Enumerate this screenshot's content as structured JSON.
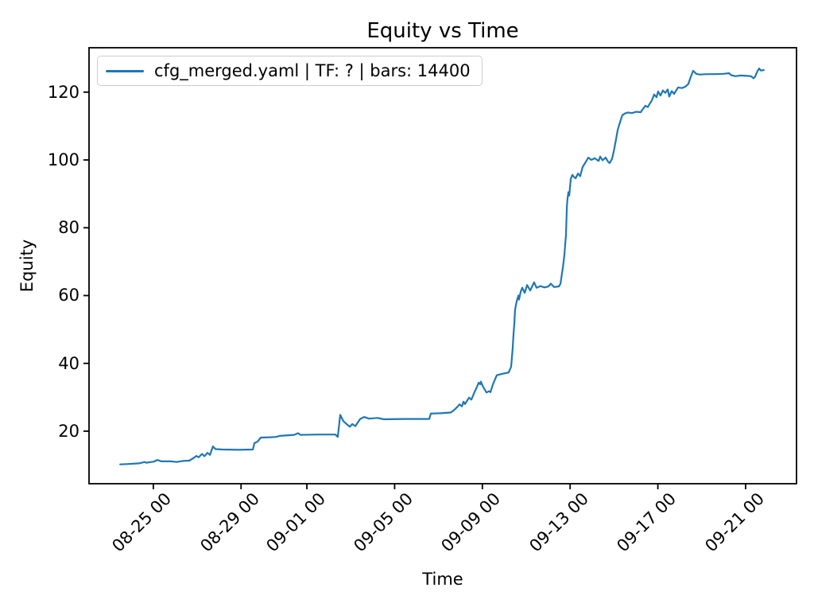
{
  "figure": {
    "title": "Equity vs Time",
    "xlabel": "Time",
    "ylabel": "Equity",
    "background_color": "#ffffff",
    "text_color": "#000000"
  },
  "legend": {
    "series_label": "cfg_merged.yaml | TF: ? | bars: 14400",
    "line_color": "#1f77b4",
    "position": "upper left"
  },
  "chart_data": {
    "type": "line",
    "title": "Equity vs Time",
    "xlabel": "Time",
    "ylabel": "Equity",
    "grid": false,
    "legend_position": "upper left",
    "x_unit": "days since 08-22 00:00 (dates shown as MM-DD HH)",
    "xlim": [
      0.07,
      32.32
    ],
    "ylim": [
      4.5,
      133.1
    ],
    "x_ticks": [
      {
        "t": 3,
        "label": "08-25 00"
      },
      {
        "t": 7,
        "label": "08-29 00"
      },
      {
        "t": 10,
        "label": "09-01 00"
      },
      {
        "t": 14,
        "label": "09-05 00"
      },
      {
        "t": 18,
        "label": "09-09 00"
      },
      {
        "t": 22,
        "label": "09-13 00"
      },
      {
        "t": 26,
        "label": "09-17 00"
      },
      {
        "t": 30,
        "label": "09-21 00"
      }
    ],
    "y_ticks": [
      20,
      40,
      60,
      80,
      100,
      120
    ],
    "series": [
      {
        "name": "cfg_merged.yaml | TF: ? | bars: 14400",
        "color": "#1f77b4",
        "line_width": 2.2,
        "points": [
          [
            1.49,
            10.2
          ],
          [
            1.81,
            10.3
          ],
          [
            2.36,
            10.5
          ],
          [
            2.6,
            10.9
          ],
          [
            2.68,
            10.7
          ],
          [
            3.01,
            11.0
          ],
          [
            3.19,
            11.5
          ],
          [
            3.37,
            11.1
          ],
          [
            3.8,
            11.1
          ],
          [
            4.06,
            10.9
          ],
          [
            4.35,
            11.2
          ],
          [
            4.64,
            11.3
          ],
          [
            4.82,
            12.0
          ],
          [
            4.96,
            12.7
          ],
          [
            5.07,
            12.3
          ],
          [
            5.22,
            13.3
          ],
          [
            5.33,
            12.6
          ],
          [
            5.47,
            13.6
          ],
          [
            5.58,
            13.0
          ],
          [
            5.72,
            15.5
          ],
          [
            5.83,
            14.7
          ],
          [
            6.16,
            14.6
          ],
          [
            6.88,
            14.5
          ],
          [
            7.54,
            14.6
          ],
          [
            7.61,
            16.5
          ],
          [
            7.75,
            16.9
          ],
          [
            7.9,
            18.1
          ],
          [
            8.33,
            18.2
          ],
          [
            8.59,
            18.3
          ],
          [
            8.77,
            18.6
          ],
          [
            9.42,
            18.9
          ],
          [
            9.6,
            19.4
          ],
          [
            9.71,
            18.9
          ],
          [
            10.51,
            19.0
          ],
          [
            11.3,
            19.0
          ],
          [
            11.41,
            18.3
          ],
          [
            11.52,
            24.8
          ],
          [
            11.67,
            22.9
          ],
          [
            11.85,
            21.9
          ],
          [
            11.96,
            21.3
          ],
          [
            12.07,
            22.1
          ],
          [
            12.21,
            21.5
          ],
          [
            12.43,
            23.6
          ],
          [
            12.61,
            24.2
          ],
          [
            12.83,
            23.7
          ],
          [
            13.22,
            23.9
          ],
          [
            13.51,
            23.5
          ],
          [
            14.49,
            23.6
          ],
          [
            15.58,
            23.6
          ],
          [
            15.65,
            25.2
          ],
          [
            16.12,
            25.3
          ],
          [
            16.56,
            25.5
          ],
          [
            16.67,
            26.0
          ],
          [
            16.85,
            27.1
          ],
          [
            16.96,
            27.9
          ],
          [
            17.07,
            27.3
          ],
          [
            17.14,
            28.7
          ],
          [
            17.21,
            28.0
          ],
          [
            17.39,
            29.9
          ],
          [
            17.5,
            29.3
          ],
          [
            17.64,
            31.5
          ],
          [
            17.75,
            33.0
          ],
          [
            17.83,
            34.3
          ],
          [
            17.9,
            33.8
          ],
          [
            17.93,
            34.6
          ],
          [
            18.04,
            33.0
          ],
          [
            18.19,
            31.4
          ],
          [
            18.3,
            31.8
          ],
          [
            18.37,
            31.5
          ],
          [
            18.48,
            33.8
          ],
          [
            18.66,
            36.5
          ],
          [
            18.91,
            36.9
          ],
          [
            19.2,
            37.3
          ],
          [
            19.31,
            39.0
          ],
          [
            19.38,
            44.3
          ],
          [
            19.42,
            48.6
          ],
          [
            19.46,
            52.0
          ],
          [
            19.49,
            55.7
          ],
          [
            19.53,
            57.2
          ],
          [
            19.57,
            58.4
          ],
          [
            19.64,
            60.0
          ],
          [
            19.67,
            58.8
          ],
          [
            19.75,
            61.2
          ],
          [
            19.82,
            62.3
          ],
          [
            19.93,
            60.8
          ],
          [
            20.04,
            63.1
          ],
          [
            20.18,
            61.5
          ],
          [
            20.36,
            63.9
          ],
          [
            20.47,
            62.3
          ],
          [
            20.65,
            62.8
          ],
          [
            20.83,
            62.4
          ],
          [
            21.01,
            62.7
          ],
          [
            21.12,
            63.5
          ],
          [
            21.27,
            62.5
          ],
          [
            21.49,
            62.7
          ],
          [
            21.56,
            63.5
          ],
          [
            21.63,
            66.6
          ],
          [
            21.67,
            68.2
          ],
          [
            21.74,
            72.0
          ],
          [
            21.81,
            78.0
          ],
          [
            21.85,
            86.2
          ],
          [
            21.88,
            88.5
          ],
          [
            21.92,
            90.5
          ],
          [
            21.96,
            89.5
          ],
          [
            22.03,
            94.4
          ],
          [
            22.1,
            95.6
          ],
          [
            22.17,
            95.0
          ],
          [
            22.25,
            94.6
          ],
          [
            22.36,
            96.0
          ],
          [
            22.46,
            95.2
          ],
          [
            22.57,
            97.9
          ],
          [
            22.72,
            99.5
          ],
          [
            22.83,
            100.7
          ],
          [
            22.97,
            100.0
          ],
          [
            23.12,
            100.5
          ],
          [
            23.3,
            99.7
          ],
          [
            23.37,
            101.0
          ],
          [
            23.48,
            99.9
          ],
          [
            23.62,
            100.7
          ],
          [
            23.73,
            99.5
          ],
          [
            23.8,
            99.1
          ],
          [
            23.91,
            100.3
          ],
          [
            23.99,
            102.5
          ],
          [
            24.09,
            106.0
          ],
          [
            24.17,
            108.9
          ],
          [
            24.28,
            111.2
          ],
          [
            24.38,
            113.2
          ],
          [
            24.53,
            113.8
          ],
          [
            24.64,
            114.0
          ],
          [
            24.82,
            113.8
          ],
          [
            25.0,
            114.2
          ],
          [
            25.22,
            114.1
          ],
          [
            25.29,
            114.8
          ],
          [
            25.43,
            116.0
          ],
          [
            25.54,
            115.6
          ],
          [
            25.65,
            116.8
          ],
          [
            25.72,
            117.5
          ],
          [
            25.83,
            119.3
          ],
          [
            25.94,
            118.5
          ],
          [
            26.01,
            120.2
          ],
          [
            26.12,
            119.0
          ],
          [
            26.23,
            120.5
          ],
          [
            26.34,
            119.8
          ],
          [
            26.45,
            120.8
          ],
          [
            26.52,
            118.7
          ],
          [
            26.63,
            120.3
          ],
          [
            26.74,
            119.5
          ],
          [
            26.92,
            121.4
          ],
          [
            27.1,
            121.2
          ],
          [
            27.25,
            121.6
          ],
          [
            27.39,
            122.4
          ],
          [
            27.5,
            124.5
          ],
          [
            27.61,
            126.3
          ],
          [
            27.75,
            125.4
          ],
          [
            27.9,
            125.2
          ],
          [
            28.26,
            125.3
          ],
          [
            28.62,
            125.3
          ],
          [
            28.99,
            125.4
          ],
          [
            29.24,
            125.6
          ],
          [
            29.35,
            125.0
          ],
          [
            29.53,
            124.7
          ],
          [
            29.78,
            124.9
          ],
          [
            30.07,
            124.8
          ],
          [
            30.25,
            124.7
          ],
          [
            30.36,
            124.1
          ],
          [
            30.43,
            124.5
          ],
          [
            30.54,
            126.2
          ],
          [
            30.62,
            127.0
          ],
          [
            30.69,
            126.4
          ],
          [
            30.83,
            126.5
          ]
        ]
      }
    ]
  }
}
